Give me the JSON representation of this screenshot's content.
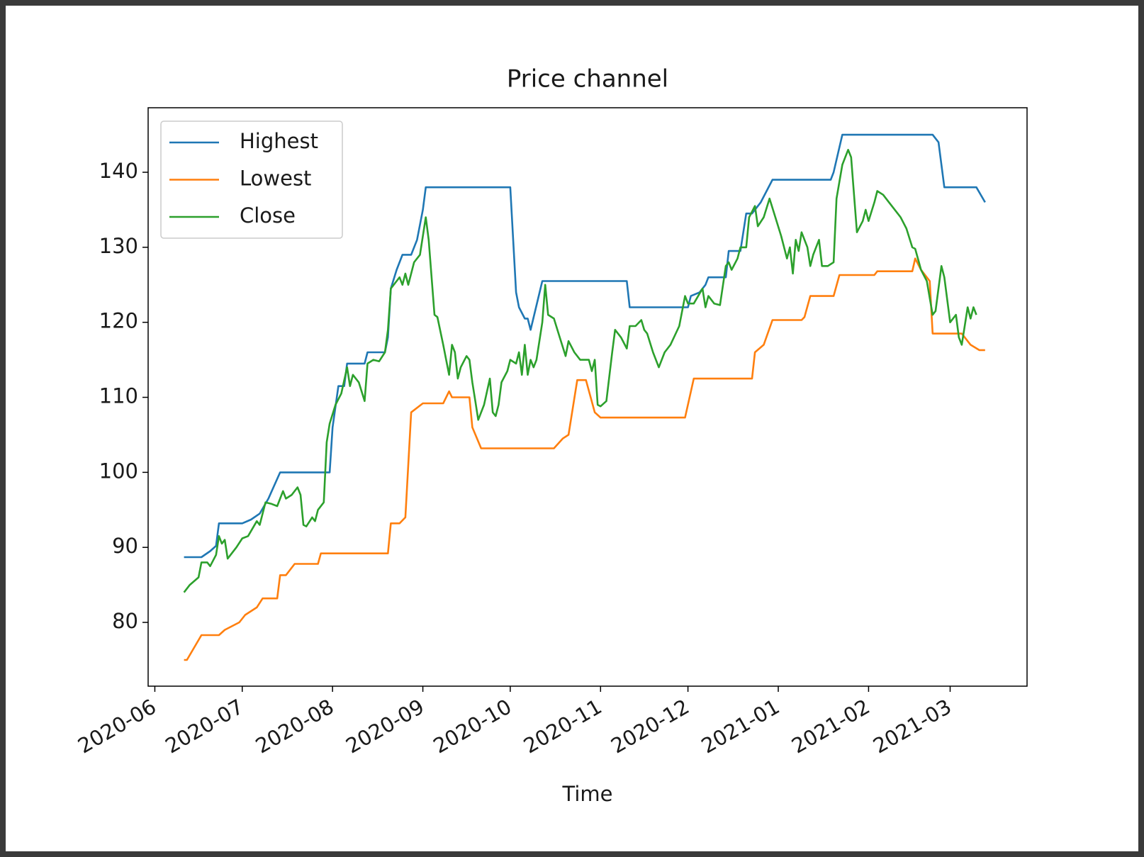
{
  "chart_data": {
    "type": "line",
    "title": "Price channel",
    "xlabel": "Time",
    "xlim": [
      -2.3,
      299.4
    ],
    "ylim": [
      71.5,
      148.6
    ],
    "xticks": [
      {
        "value": 0,
        "label": "2020-06"
      },
      {
        "value": 30,
        "label": "2020-07"
      },
      {
        "value": 61,
        "label": "2020-08"
      },
      {
        "value": 92,
        "label": "2020-09"
      },
      {
        "value": 122,
        "label": "2020-10"
      },
      {
        "value": 153,
        "label": "2020-11"
      },
      {
        "value": 183,
        "label": "2020-12"
      },
      {
        "value": 214,
        "label": "2021-01"
      },
      {
        "value": 245,
        "label": "2021-02"
      },
      {
        "value": 273,
        "label": "2021-03"
      }
    ],
    "yticks": [
      80,
      90,
      100,
      110,
      120,
      130,
      140
    ],
    "legend": "upper left",
    "grid": false,
    "series": [
      {
        "name": "Highest",
        "color": "#1f77b4",
        "x": [
          10,
          16,
          19,
          21,
          22,
          30,
          33,
          36,
          39,
          43,
          60,
          61,
          63,
          65,
          66,
          72,
          73,
          79,
          80,
          81,
          83,
          85,
          88,
          90,
          92,
          93,
          122,
          124,
          125,
          127,
          128,
          129,
          133,
          162,
          163,
          183,
          184,
          187,
          189,
          190,
          196,
          197,
          201,
          203,
          205,
          208,
          212,
          232,
          233,
          236,
          267,
          269,
          271,
          282,
          285
        ],
        "values": [
          88.7,
          88.7,
          89.5,
          90.2,
          93.2,
          93.2,
          93.7,
          94.5,
          96.5,
          100,
          100,
          106,
          111.5,
          111.5,
          114.5,
          114.5,
          116,
          116,
          118,
          124.5,
          127,
          129,
          129,
          131,
          135,
          138,
          138,
          124,
          122,
          120.5,
          120.5,
          119,
          125.5,
          125.5,
          122,
          122,
          123.5,
          124,
          125,
          126,
          126,
          129.5,
          129.5,
          134.5,
          134.5,
          136,
          139,
          139,
          140,
          145,
          145,
          144,
          138,
          138,
          136
        ]
      },
      {
        "name": "Lowest",
        "color": "#ff7f0e",
        "x": [
          10,
          11,
          16,
          22,
          24,
          29,
          31,
          35,
          37,
          42,
          43,
          45,
          48,
          56,
          57,
          80,
          81,
          84,
          86,
          88,
          92,
          99,
          101,
          102,
          108,
          109,
          112,
          137,
          140,
          142,
          145,
          148,
          151,
          153,
          182,
          185,
          205,
          206,
          209,
          212,
          222,
          223,
          225,
          233,
          235,
          247,
          248,
          260,
          261,
          263,
          266,
          267,
          277,
          280,
          283,
          285
        ],
        "values": [
          75,
          75,
          78.3,
          78.3,
          79,
          80,
          81,
          82,
          83.2,
          83.2,
          86.3,
          86.3,
          87.8,
          87.8,
          89.2,
          89.2,
          93.2,
          93.2,
          94,
          108,
          109.2,
          109.2,
          110.8,
          110,
          110,
          106,
          103.2,
          103.2,
          104.5,
          105,
          112.3,
          112.3,
          108,
          107.3,
          107.3,
          112.5,
          112.5,
          116,
          117,
          120.3,
          120.3,
          120.7,
          123.5,
          123.5,
          126.3,
          126.3,
          126.8,
          126.8,
          128.5,
          127,
          125.5,
          118.5,
          118.5,
          117,
          116.3,
          116.3
        ]
      },
      {
        "name": "Close",
        "color": "#2ca02c",
        "x": [
          10,
          12,
          15,
          16,
          18,
          19,
          21,
          22,
          23,
          24,
          25,
          28,
          30,
          32,
          35,
          36,
          38,
          40,
          42,
          44,
          45,
          47,
          49,
          50,
          51,
          52,
          54,
          55,
          56,
          58,
          59,
          60,
          62,
          64,
          66,
          67,
          68,
          70,
          72,
          73,
          75,
          77,
          79,
          80,
          81,
          83,
          84,
          85,
          86,
          87,
          89,
          91,
          93,
          94,
          96,
          97,
          99,
          101,
          102,
          103,
          104,
          105,
          107,
          108,
          109,
          110,
          111,
          113,
          115,
          116,
          117,
          118,
          119,
          121,
          122,
          124,
          125,
          126,
          127,
          128,
          129,
          130,
          131,
          133,
          134,
          135,
          137,
          139,
          141,
          142,
          144,
          146,
          149,
          150,
          151,
          152,
          153,
          155,
          157,
          158,
          160,
          162,
          163,
          165,
          167,
          168,
          169,
          171,
          173,
          175,
          177,
          180,
          182,
          183,
          185,
          188,
          189,
          190,
          192,
          194,
          196,
          197,
          198,
          200,
          201,
          203,
          204,
          206,
          207,
          209,
          211,
          213,
          215,
          217,
          218,
          219,
          220,
          221,
          222,
          224,
          225,
          226,
          228,
          229,
          231,
          233,
          234,
          236,
          238,
          239,
          241,
          243,
          244,
          245,
          247,
          248,
          250,
          252,
          254,
          256,
          258,
          260,
          261,
          263,
          265,
          267,
          268,
          270,
          271,
          273,
          275,
          276,
          277,
          279,
          280,
          281,
          282
        ],
        "values": [
          84,
          85,
          86,
          88,
          88,
          87.5,
          89,
          91.5,
          90.5,
          91,
          88.5,
          90,
          91.2,
          91.5,
          93.5,
          93,
          96,
          95.8,
          95.5,
          97.5,
          96.5,
          97,
          98,
          97,
          93,
          92.8,
          94,
          93.5,
          95,
          96,
          104,
          106.5,
          109,
          110.5,
          114,
          111.5,
          113,
          112,
          109.5,
          114.5,
          115,
          114.8,
          116,
          119,
          124.5,
          125.5,
          126,
          125,
          126.5,
          125,
          128,
          129,
          134,
          131,
          121,
          120.7,
          117,
          113,
          117,
          116,
          112.5,
          114,
          115.5,
          115,
          112,
          109.5,
          107,
          109,
          112.5,
          108,
          107.5,
          109,
          112,
          113.5,
          115,
          114.5,
          116,
          113,
          117,
          113,
          115,
          114,
          115,
          120,
          125,
          121,
          120.5,
          118,
          115.5,
          117.5,
          116,
          115,
          115,
          113.5,
          115,
          109,
          108.8,
          109.5,
          116,
          119,
          118,
          116.5,
          119.5,
          119.5,
          120.3,
          119,
          118.5,
          116,
          114,
          116,
          117,
          119.5,
          123.5,
          122.5,
          122.5,
          124.5,
          122,
          123.5,
          122.5,
          122.3,
          127.5,
          128,
          127,
          128.5,
          130,
          130,
          134,
          135.5,
          132.8,
          134,
          136.5,
          134,
          131.5,
          128.5,
          130,
          126.5,
          131,
          129.5,
          132,
          130,
          127.5,
          129,
          131,
          127.5,
          127.5,
          128,
          136.5,
          141,
          143,
          142,
          132,
          133.5,
          135,
          133.5,
          136,
          137.5,
          137,
          136,
          135,
          134,
          132.5,
          130,
          129.8,
          127,
          125.5,
          121,
          121.5,
          127.5,
          126,
          120,
          121,
          118,
          117,
          122,
          120.5,
          122,
          121
        ]
      }
    ]
  }
}
